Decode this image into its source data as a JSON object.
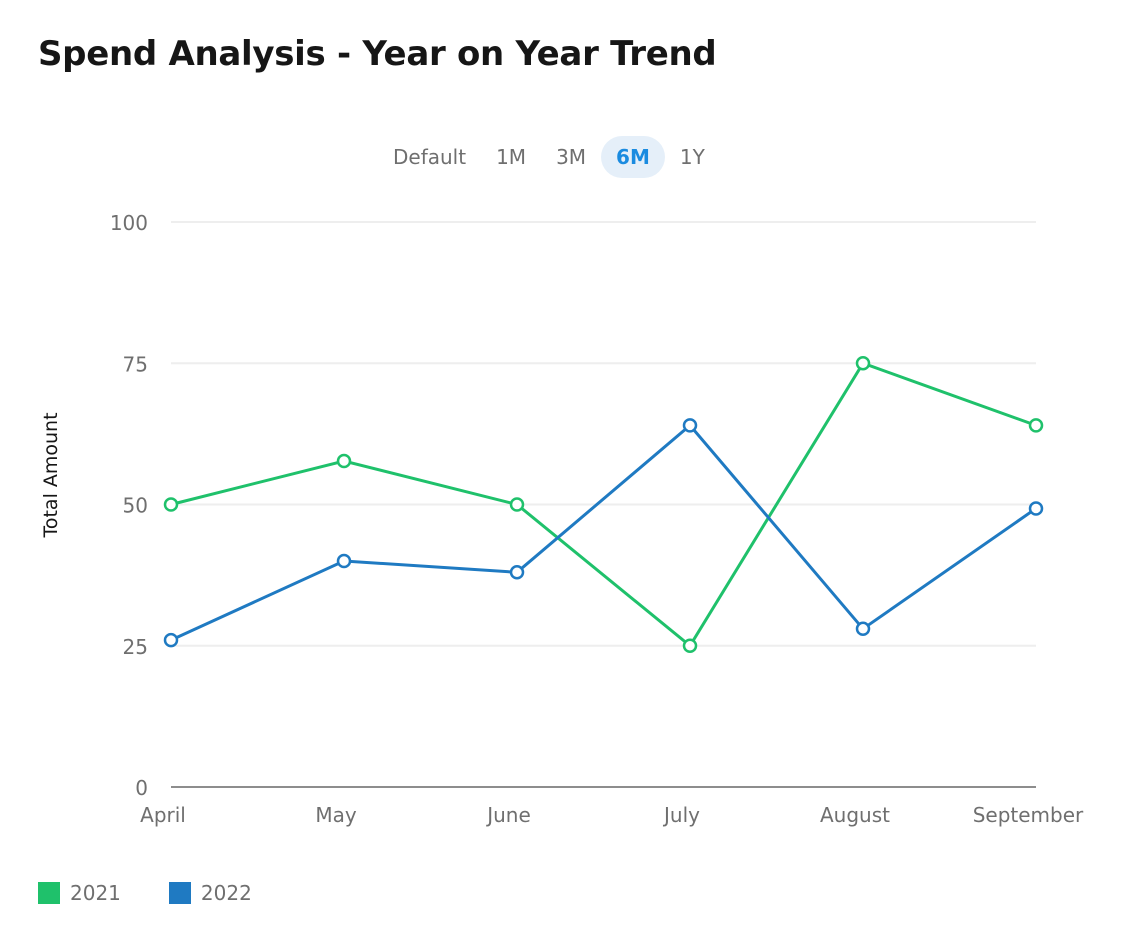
{
  "header": {
    "title": "Spend Analysis - Year on Year Trend"
  },
  "toggles": [
    {
      "label": "Default",
      "active": false
    },
    {
      "label": "1M",
      "active": false
    },
    {
      "label": "3M",
      "active": false
    },
    {
      "label": "6M",
      "active": true
    },
    {
      "label": "1Y",
      "active": false
    }
  ],
  "chart_data": {
    "type": "line",
    "title": "",
    "xlabel": "",
    "ylabel": "Total Amount",
    "ylim": [
      0,
      100
    ],
    "yticks": [
      0,
      25,
      50,
      75,
      100
    ],
    "grid": true,
    "legend": "bottom-left",
    "categories": [
      "April",
      "May",
      "June",
      "July",
      "August",
      "September"
    ],
    "series": [
      {
        "name": "2021",
        "color": "#1fc16b",
        "values": [
          50,
          57.7,
          50,
          25,
          75,
          64
        ]
      },
      {
        "name": "2022",
        "color": "#1f7ac2",
        "values": [
          26,
          40,
          38,
          64,
          28,
          49.3
        ]
      }
    ]
  }
}
